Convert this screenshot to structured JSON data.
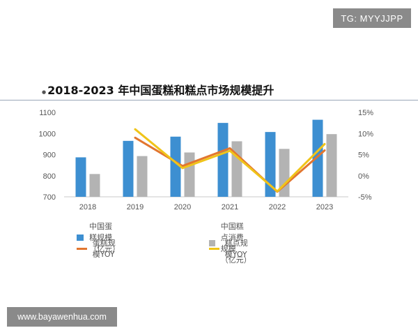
{
  "watermark_top": "TG: MYYJJPP",
  "watermark_bottom": "www.bayawenhua.com",
  "chart_data": {
    "type": "bar",
    "title": "2018-2023 年中国蛋糕和糕点市场规模提升",
    "categories": [
      "2018",
      "2019",
      "2020",
      "2021",
      "2022",
      "2023"
    ],
    "ylim": [
      700,
      1100
    ],
    "yticks": [
      "700",
      "800",
      "900",
      "1000",
      "1100"
    ],
    "y2lim": [
      -5,
      15
    ],
    "y2ticks": [
      "-5%",
      "0%",
      "5%",
      "10%",
      "15%"
    ],
    "series": [
      {
        "name": "中国蛋糕规模（亿元）",
        "kind": "bar",
        "axis": "left",
        "color": "#3d8fd1",
        "values": [
          887,
          965,
          985,
          1050,
          1007,
          1065
        ]
      },
      {
        "name": "中国糕点消费规模（亿元）",
        "kind": "bar",
        "axis": "left",
        "color": "#b3b3b3",
        "values": [
          808,
          893,
          910,
          963,
          927,
          997
        ]
      },
      {
        "name": "蛋糕规模YOY",
        "kind": "line",
        "axis": "right",
        "color": "#e2762f",
        "values": [
          null,
          9.0,
          2.3,
          6.5,
          -3.8,
          6.0
        ]
      },
      {
        "name": "糕点规模YOY",
        "kind": "line",
        "axis": "right",
        "color": "#f0c419",
        "values": [
          null,
          11.0,
          1.8,
          5.9,
          -3.7,
          7.5
        ]
      }
    ],
    "legend_position": "bottom",
    "grid": false
  }
}
